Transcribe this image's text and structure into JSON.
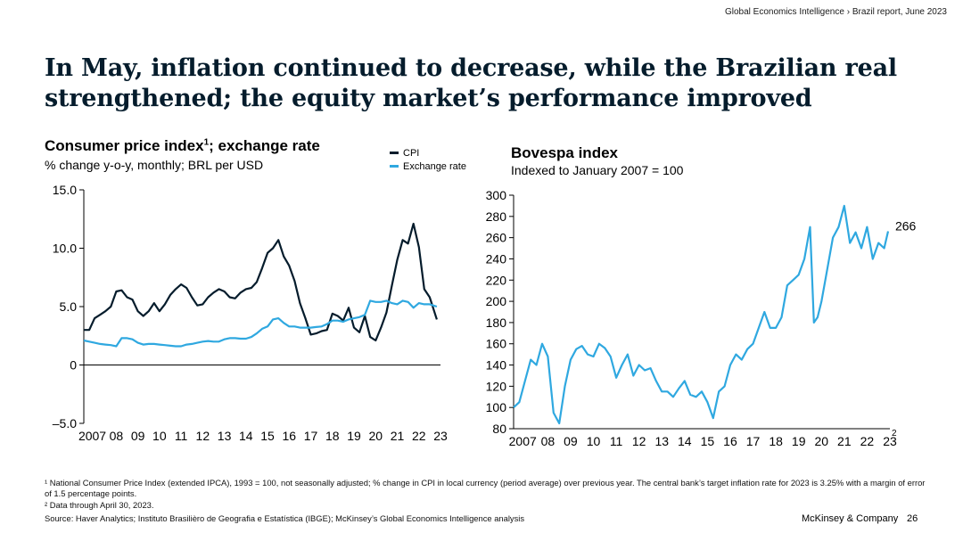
{
  "header": {
    "report_ref": "Global Economics Intelligence › Brazil report, June 2023"
  },
  "title": {
    "line1": "In May, inflation continued to decrease, while the Brazilian real",
    "line2": "strengthened; the equity market’s performance improved"
  },
  "colors": {
    "cpi": "#051c2c",
    "exchange_rate": "#2fa8e0",
    "bovespa": "#2fa8e0",
    "axis": "#000000"
  },
  "left_chart": {
    "title_main": "Consumer price index",
    "title_sup": "1",
    "title_rest": "; exchange rate",
    "subtitle": "% change y-o-y, monthly; BRL per USD",
    "legend": [
      "CPI",
      "Exchange rate"
    ]
  },
  "right_chart": {
    "title": "Bovespa index",
    "subtitle": "Indexed to January 2007 = 100",
    "end_label": "266",
    "end_label_sup": "2"
  },
  "chart_data": [
    {
      "type": "line",
      "title": "Consumer price index; exchange rate",
      "xlabel": "",
      "ylabel": "% change y-o-y, monthly; BRL per USD",
      "ylim": [
        -5,
        15
      ],
      "yticks": [
        15,
        10,
        5,
        0,
        -5
      ],
      "ytick_labels": [
        "15.0",
        "10.0",
        "5.0",
        "0",
        "–5.0"
      ],
      "x_labels": [
        "2007",
        "08",
        "09",
        "10",
        "11",
        "12",
        "13",
        "14",
        "15",
        "16",
        "17",
        "18",
        "19",
        "20",
        "21",
        "22",
        "23"
      ],
      "xlim": [
        2007.0,
        2023.5
      ],
      "series": [
        {
          "name": "CPI",
          "x": [
            2007.0,
            2007.25,
            2007.5,
            2007.75,
            2008.0,
            2008.25,
            2008.5,
            2008.75,
            2009.0,
            2009.25,
            2009.5,
            2009.75,
            2010.0,
            2010.25,
            2010.5,
            2010.75,
            2011.0,
            2011.25,
            2011.5,
            2011.75,
            2012.0,
            2012.25,
            2012.5,
            2012.75,
            2013.0,
            2013.25,
            2013.5,
            2013.75,
            2014.0,
            2014.25,
            2014.5,
            2014.75,
            2015.0,
            2015.25,
            2015.5,
            2015.75,
            2016.0,
            2016.25,
            2016.5,
            2016.75,
            2017.0,
            2017.25,
            2017.5,
            2017.75,
            2018.0,
            2018.25,
            2018.5,
            2018.75,
            2019.0,
            2019.25,
            2019.5,
            2019.75,
            2020.0,
            2020.25,
            2020.5,
            2020.75,
            2021.0,
            2021.25,
            2021.5,
            2021.75,
            2022.0,
            2022.25,
            2022.5,
            2022.75,
            2023.0,
            2023.33
          ],
          "values": [
            3.0,
            3.0,
            4.0,
            4.3,
            4.6,
            5.0,
            6.3,
            6.4,
            5.8,
            5.6,
            4.6,
            4.2,
            4.6,
            5.3,
            4.6,
            5.2,
            6.0,
            6.5,
            6.9,
            6.6,
            5.8,
            5.1,
            5.2,
            5.8,
            6.2,
            6.5,
            6.3,
            5.8,
            5.7,
            6.2,
            6.5,
            6.6,
            7.1,
            8.3,
            9.6,
            10.0,
            10.7,
            9.3,
            8.5,
            7.2,
            5.3,
            4.0,
            2.6,
            2.7,
            2.9,
            3.0,
            4.4,
            4.2,
            3.8,
            4.9,
            3.2,
            2.8,
            4.2,
            2.4,
            2.1,
            3.2,
            4.5,
            6.8,
            9.0,
            10.7,
            10.4,
            12.1,
            10.1,
            6.5,
            5.8,
            3.9
          ]
        },
        {
          "name": "Exchange rate",
          "x": [
            2007.0,
            2007.25,
            2007.5,
            2007.75,
            2008.0,
            2008.25,
            2008.5,
            2008.75,
            2009.0,
            2009.25,
            2009.5,
            2009.75,
            2010.0,
            2010.25,
            2010.5,
            2010.75,
            2011.0,
            2011.25,
            2011.5,
            2011.75,
            2012.0,
            2012.25,
            2012.5,
            2012.75,
            2013.0,
            2013.25,
            2013.5,
            2013.75,
            2014.0,
            2014.25,
            2014.5,
            2014.75,
            2015.0,
            2015.25,
            2015.5,
            2015.75,
            2016.0,
            2016.25,
            2016.5,
            2016.75,
            2017.0,
            2017.25,
            2017.5,
            2017.75,
            2018.0,
            2018.25,
            2018.5,
            2018.75,
            2019.0,
            2019.25,
            2019.5,
            2019.75,
            2020.0,
            2020.25,
            2020.5,
            2020.75,
            2021.0,
            2021.25,
            2021.5,
            2021.75,
            2022.0,
            2022.25,
            2022.5,
            2022.75,
            2023.0,
            2023.33
          ],
          "values": [
            2.1,
            2.0,
            1.9,
            1.8,
            1.75,
            1.7,
            1.6,
            2.3,
            2.3,
            2.2,
            1.9,
            1.75,
            1.8,
            1.8,
            1.75,
            1.7,
            1.65,
            1.6,
            1.6,
            1.75,
            1.8,
            1.9,
            2.0,
            2.05,
            2.0,
            2.0,
            2.2,
            2.3,
            2.3,
            2.25,
            2.25,
            2.4,
            2.7,
            3.1,
            3.3,
            3.9,
            4.0,
            3.6,
            3.3,
            3.3,
            3.2,
            3.2,
            3.2,
            3.25,
            3.3,
            3.5,
            3.8,
            3.8,
            3.7,
            3.9,
            4.0,
            4.1,
            4.3,
            5.5,
            5.4,
            5.4,
            5.5,
            5.3,
            5.2,
            5.5,
            5.4,
            4.9,
            5.3,
            5.2,
            5.2,
            5.0
          ]
        }
      ]
    },
    {
      "type": "line",
      "title": "Bovespa index",
      "xlabel": "",
      "ylabel": "Indexed to January 2007 = 100",
      "ylim": [
        80,
        300
      ],
      "yticks": [
        300,
        280,
        260,
        240,
        220,
        200,
        180,
        160,
        140,
        120,
        100,
        80
      ],
      "x_labels": [
        "2007",
        "08",
        "09",
        "10",
        "11",
        "12",
        "13",
        "14",
        "15",
        "16",
        "17",
        "18",
        "19",
        "20",
        "21",
        "22",
        "23"
      ],
      "xlim": [
        2007.0,
        2023.5
      ],
      "series": [
        {
          "name": "Bovespa",
          "x": [
            2007.0,
            2007.25,
            2007.5,
            2007.75,
            2008.0,
            2008.25,
            2008.5,
            2008.75,
            2009.0,
            2009.25,
            2009.5,
            2009.75,
            2010.0,
            2010.25,
            2010.5,
            2010.75,
            2011.0,
            2011.25,
            2011.5,
            2011.75,
            2012.0,
            2012.25,
            2012.5,
            2012.75,
            2013.0,
            2013.25,
            2013.5,
            2013.75,
            2014.0,
            2014.25,
            2014.5,
            2014.75,
            2015.0,
            2015.25,
            2015.5,
            2015.75,
            2016.0,
            2016.25,
            2016.5,
            2016.75,
            2017.0,
            2017.25,
            2017.5,
            2017.75,
            2018.0,
            2018.25,
            2018.5,
            2018.75,
            2019.0,
            2019.25,
            2019.5,
            2019.75,
            2020.0,
            2020.17,
            2020.33,
            2020.5,
            2020.75,
            2021.0,
            2021.25,
            2021.5,
            2021.75,
            2022.0,
            2022.25,
            2022.5,
            2022.75,
            2023.0,
            2023.25,
            2023.42
          ],
          "values": [
            100,
            105,
            125,
            145,
            140,
            160,
            148,
            95,
            85,
            120,
            145,
            155,
            158,
            150,
            148,
            160,
            156,
            148,
            128,
            140,
            150,
            130,
            140,
            135,
            137,
            125,
            115,
            115,
            110,
            118,
            125,
            112,
            110,
            115,
            105,
            90,
            115,
            120,
            140,
            150,
            145,
            155,
            160,
            175,
            190,
            175,
            175,
            185,
            215,
            220,
            225,
            240,
            270,
            180,
            185,
            200,
            230,
            260,
            270,
            290,
            255,
            265,
            250,
            270,
            240,
            255,
            250,
            266
          ]
        }
      ]
    }
  ],
  "footnotes": {
    "fn1": "¹ National Consumer Price Index (extended IPCA), 1993 = 100, not seasonally adjusted; % change in CPI in local currency (period average) over previous year. The central bank’s target inflation rate for 2023 is 3.25% with a margin of error of 1.5 percentage points.",
    "fn2": "² Data through April 30, 2023.",
    "source": "Source: Haver Analytics; Instituto Brasilièro de Geografia e Estatística (IBGE); McKinsey’s Global Economics Intelligence analysis"
  },
  "footer": {
    "brand": "McKinsey & Company",
    "page_number": "26"
  }
}
